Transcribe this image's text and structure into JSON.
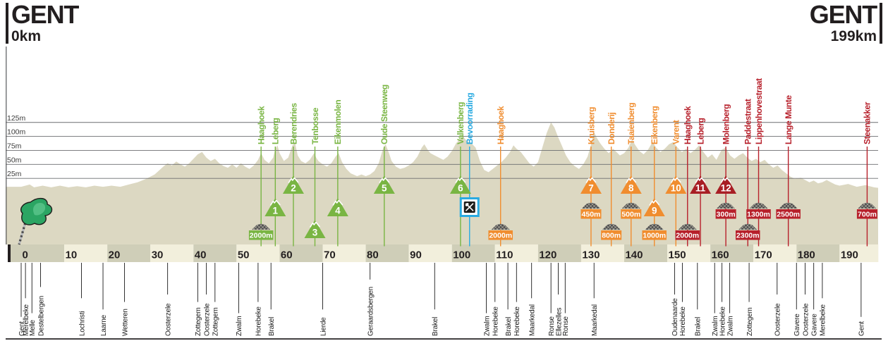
{
  "header": {
    "start_city": "GENT",
    "start_distance": "0km",
    "finish_city": "GENT",
    "finish_distance": "199km"
  },
  "colors": {
    "green": "#79b543",
    "blue": "#29aae1",
    "orange": "#f08d2f",
    "red": "#b7202b",
    "red_triangle": "#a81e24",
    "profile_fill": "#dcd8c2",
    "band_dark": "#cfceb8",
    "band_light": "#f2efdc",
    "grid_line": "#6b6d70",
    "ink": "#231f20",
    "cobble_gray": "#4d4d4f"
  },
  "icons": {
    "start_flag": "green-start-flag",
    "feed_zone": "crossed-knife-and-spoon-sign",
    "cobbled_sector": "cobblestone-mound",
    "climb": "mountain-triangle-with-number"
  },
  "chart_data": {
    "type": "area",
    "x_unit": "km",
    "y_unit": "m",
    "x_range": [
      0,
      199
    ],
    "km_ticks": [
      0,
      10,
      20,
      30,
      40,
      50,
      60,
      70,
      80,
      90,
      100,
      110,
      120,
      130,
      140,
      150,
      160,
      170,
      180,
      190
    ],
    "elevation_ticks_m": [
      25,
      50,
      75,
      100,
      125
    ],
    "elevation_tick_labels": [
      "25m",
      "50m",
      "75m",
      "100m",
      "125m"
    ],
    "profile_km_elevation": [
      [
        0,
        10
      ],
      [
        2,
        14
      ],
      [
        3,
        9
      ],
      [
        5,
        12
      ],
      [
        7,
        9
      ],
      [
        9,
        12
      ],
      [
        11,
        9
      ],
      [
        13,
        11
      ],
      [
        15,
        9
      ],
      [
        17,
        12
      ],
      [
        19,
        10
      ],
      [
        21,
        12
      ],
      [
        23,
        10
      ],
      [
        25,
        14
      ],
      [
        27,
        18
      ],
      [
        29,
        24
      ],
      [
        31,
        32
      ],
      [
        33,
        46
      ],
      [
        34,
        52
      ],
      [
        35,
        48
      ],
      [
        36,
        55
      ],
      [
        37,
        50
      ],
      [
        38,
        46
      ],
      [
        39,
        52
      ],
      [
        40,
        60
      ],
      [
        41,
        68
      ],
      [
        42,
        72
      ],
      [
        43,
        62
      ],
      [
        44,
        56
      ],
      [
        45,
        60
      ],
      [
        46,
        52
      ],
      [
        47,
        47
      ],
      [
        48,
        44
      ],
      [
        49,
        50
      ],
      [
        50,
        44
      ],
      [
        51,
        52
      ],
      [
        52,
        46
      ],
      [
        53,
        42
      ],
      [
        54,
        48
      ],
      [
        55,
        58
      ],
      [
        55.7,
        70
      ],
      [
        56.5,
        58
      ],
      [
        57.5,
        52
      ],
      [
        58.5,
        62
      ],
      [
        59,
        78
      ],
      [
        59.5,
        84
      ],
      [
        60,
        70
      ],
      [
        61,
        56
      ],
      [
        62,
        62
      ],
      [
        63,
        84
      ],
      [
        63.6,
        88
      ],
      [
        64.2,
        66
      ],
      [
        65,
        56
      ],
      [
        66,
        52
      ],
      [
        67,
        58
      ],
      [
        68,
        70
      ],
      [
        68.5,
        62
      ],
      [
        69,
        56
      ],
      [
        70,
        50
      ],
      [
        71,
        46
      ],
      [
        72,
        52
      ],
      [
        73,
        64
      ],
      [
        73.7,
        70
      ],
      [
        74.5,
        54
      ],
      [
        75.5,
        42
      ],
      [
        76.5,
        34
      ],
      [
        78,
        29
      ],
      [
        79,
        32
      ],
      [
        80,
        29
      ],
      [
        81,
        32
      ],
      [
        82,
        38
      ],
      [
        83,
        52
      ],
      [
        84,
        78
      ],
      [
        84.6,
        86
      ],
      [
        85.4,
        70
      ],
      [
        86,
        56
      ],
      [
        87,
        46
      ],
      [
        88,
        42
      ],
      [
        89,
        44
      ],
      [
        90,
        48
      ],
      [
        91,
        54
      ],
      [
        92,
        64
      ],
      [
        93,
        80
      ],
      [
        93.6,
        86
      ],
      [
        94.4,
        76
      ],
      [
        95,
        70
      ],
      [
        96,
        66
      ],
      [
        97,
        62
      ],
      [
        98,
        58
      ],
      [
        99,
        64
      ],
      [
        100,
        74
      ],
      [
        101,
        88
      ],
      [
        102,
        96
      ],
      [
        102.6,
        100
      ],
      [
        103.4,
        92
      ],
      [
        104.5,
        88
      ],
      [
        105.5,
        80
      ],
      [
        106.5,
        56
      ],
      [
        107.5,
        40
      ],
      [
        108.5,
        36
      ],
      [
        109.5,
        42
      ],
      [
        110.5,
        48
      ],
      [
        111.5,
        54
      ],
      [
        112.5,
        62
      ],
      [
        113.5,
        72
      ],
      [
        114.3,
        84
      ],
      [
        115,
        78
      ],
      [
        116,
        72
      ],
      [
        117,
        62
      ],
      [
        118,
        52
      ],
      [
        119,
        46
      ],
      [
        120,
        54
      ],
      [
        121,
        80
      ],
      [
        122,
        106
      ],
      [
        123,
        125
      ],
      [
        123.8,
        116
      ],
      [
        124.6,
        100
      ],
      [
        125.5,
        84
      ],
      [
        126.5,
        66
      ],
      [
        127.5,
        54
      ],
      [
        128.5,
        47
      ],
      [
        129.5,
        42
      ],
      [
        130.5,
        50
      ],
      [
        131.5,
        64
      ],
      [
        132.4,
        88
      ],
      [
        133,
        108
      ],
      [
        133.6,
        98
      ],
      [
        134.4,
        88
      ],
      [
        135.4,
        78
      ],
      [
        136.4,
        70
      ],
      [
        137.4,
        78
      ],
      [
        138.2,
        72
      ],
      [
        139,
        66
      ],
      [
        140,
        70
      ],
      [
        141,
        80
      ],
      [
        141.8,
        94
      ],
      [
        142.6,
        84
      ],
      [
        143.5,
        74
      ],
      [
        144.5,
        68
      ],
      [
        145.5,
        76
      ],
      [
        146.6,
        90
      ],
      [
        147.4,
        80
      ],
      [
        148.4,
        72
      ],
      [
        149.4,
        78
      ],
      [
        150.4,
        86
      ],
      [
        151.4,
        90
      ],
      [
        152.4,
        80
      ],
      [
        153.4,
        72
      ],
      [
        154.4,
        78
      ],
      [
        155.4,
        70
      ],
      [
        156.4,
        76
      ],
      [
        157.4,
        84
      ],
      [
        158.4,
        72
      ],
      [
        159.4,
        62
      ],
      [
        160.4,
        68
      ],
      [
        161.4,
        58
      ],
      [
        162.6,
        76
      ],
      [
        163.6,
        80
      ],
      [
        164.6,
        66
      ],
      [
        165.6,
        60
      ],
      [
        166.6,
        66
      ],
      [
        167.6,
        70
      ],
      [
        168.6,
        62
      ],
      [
        169.6,
        56
      ],
      [
        170.6,
        60
      ],
      [
        171.6,
        54
      ],
      [
        172.6,
        58
      ],
      [
        173.6,
        50
      ],
      [
        174.6,
        44
      ],
      [
        175.6,
        48
      ],
      [
        176.6,
        40
      ],
      [
        177.6,
        34
      ],
      [
        178.6,
        28
      ],
      [
        179.6,
        24
      ],
      [
        181,
        26
      ],
      [
        182,
        22
      ],
      [
        183,
        18
      ],
      [
        184,
        21
      ],
      [
        185,
        16
      ],
      [
        186,
        18
      ],
      [
        187,
        22
      ],
      [
        188,
        18
      ],
      [
        189,
        14
      ],
      [
        190,
        12
      ],
      [
        192,
        15
      ],
      [
        194,
        10
      ],
      [
        196,
        13
      ],
      [
        198,
        9
      ],
      [
        199,
        8
      ]
    ],
    "features": [
      {
        "name": "Haaghoek",
        "km": 55.7,
        "color": "green",
        "type": "cobbles",
        "badge": "2000m",
        "badge_tier": "low"
      },
      {
        "name": "Leberg",
        "km": 59,
        "color": "green",
        "type": "climb",
        "number": 1,
        "tier": "mid"
      },
      {
        "name": "Berendries",
        "km": 63.2,
        "color": "green",
        "type": "climb",
        "number": 2,
        "tier": "high"
      },
      {
        "name": "Tenbosse",
        "km": 68.2,
        "color": "green",
        "type": "climb",
        "number": 3,
        "tier": "low"
      },
      {
        "name": "Eikenmolen",
        "km": 73.5,
        "color": "green",
        "type": "climb",
        "number": 4,
        "tier": "mid"
      },
      {
        "name": "Oude Steenweg",
        "km": 84.3,
        "color": "green",
        "type": "climb",
        "number": 5,
        "tier": "high"
      },
      {
        "name": "Valkenberg",
        "km": 102,
        "color": "green",
        "type": "climb",
        "number": 6,
        "tier": "high"
      },
      {
        "name": "Bevoorrading",
        "km": 104.1,
        "color": "blue",
        "type": "feed"
      },
      {
        "name": "Haaghoek",
        "km": 111.3,
        "color": "orange",
        "type": "cobbles",
        "badge": "2000m",
        "badge_tier": "low"
      },
      {
        "name": "Kruisberg",
        "km": 132.3,
        "color": "orange",
        "type": "climb",
        "number": 7,
        "tier": "high",
        "badge": "450m",
        "badge_tier": "mid"
      },
      {
        "name": "Donderij",
        "km": 137,
        "color": "orange",
        "type": "cobbles",
        "badge": "800m",
        "badge_tier": "low"
      },
      {
        "name": "Taaienberg",
        "km": 141.6,
        "color": "orange",
        "type": "climb",
        "number": 8,
        "tier": "high",
        "badge": "500m",
        "badge_tier": "mid"
      },
      {
        "name": "Eikenberg",
        "km": 147,
        "color": "orange",
        "type": "climb",
        "number": 9,
        "tier": "mid",
        "badge": "1000m",
        "badge_tier": "low"
      },
      {
        "name": "Varent",
        "km": 152,
        "color": "orange",
        "type": "climb",
        "number": 10,
        "tier": "high"
      },
      {
        "name": "Haaghoek",
        "km": 154.7,
        "color": "red",
        "type": "cobbles",
        "badge": "2000m",
        "badge_tier": "low"
      },
      {
        "name": "Leberg",
        "km": 157.7,
        "color": "red",
        "type": "climb",
        "number": 11,
        "tier": "high"
      },
      {
        "name": "Molenberg",
        "km": 163.6,
        "color": "red",
        "type": "climb",
        "number": 12,
        "tier": "high",
        "badge": "300m",
        "badge_tier": "mid"
      },
      {
        "name": "Paddestraat",
        "km": 168.7,
        "color": "red",
        "type": "cobbles",
        "badge": "2300m",
        "badge_tier": "low"
      },
      {
        "name": "Lippenhovestraat",
        "km": 171.2,
        "color": "red",
        "type": "cobbles",
        "badge": "1300m",
        "badge_tier": "mid"
      },
      {
        "name": "Lange Munte",
        "km": 178.1,
        "color": "red",
        "type": "cobbles",
        "badge": "2500m",
        "badge_tier": "mid"
      },
      {
        "name": "Steenakker",
        "km": 196.4,
        "color": "red",
        "type": "cobbles",
        "badge": "700m",
        "badge_tier": "mid"
      }
    ],
    "towns": [
      {
        "name": "Gent",
        "km": 0
      },
      {
        "name": "Merelbeke",
        "km": 1
      },
      {
        "name": "Melle",
        "km": 2.5
      },
      {
        "name": "Destelbergen",
        "km": 4.5
      },
      {
        "name": "Lochristi",
        "km": 14
      },
      {
        "name": "Laarne",
        "km": 19
      },
      {
        "name": "Wetteren",
        "km": 24
      },
      {
        "name": "Oosterzele",
        "km": 34
      },
      {
        "name": "Zottegem",
        "km": 41
      },
      {
        "name": "Oosterzele",
        "km": 43
      },
      {
        "name": "Zottegem",
        "km": 45
      },
      {
        "name": "Zwalm",
        "km": 50.5
      },
      {
        "name": "Horebeke",
        "km": 55
      },
      {
        "name": "Brakel",
        "km": 58
      },
      {
        "name": "Lierde",
        "km": 70
      },
      {
        "name": "Geraardsbergen",
        "km": 81
      },
      {
        "name": "Brakel",
        "km": 96
      },
      {
        "name": "Zwalm",
        "km": 108
      },
      {
        "name": "Horebeke",
        "km": 110
      },
      {
        "name": "Brakel",
        "km": 113
      },
      {
        "name": "Horebeke",
        "km": 115
      },
      {
        "name": "Maarkedal",
        "km": 118.5
      },
      {
        "name": "Ronse",
        "km": 123
      },
      {
        "name": "Ellezelles",
        "km": 124.7
      },
      {
        "name": "Ronse",
        "km": 126.3
      },
      {
        "name": "Maarkedal",
        "km": 133
      },
      {
        "name": "Oudenaarde",
        "km": 151.7
      },
      {
        "name": "Horebeke",
        "km": 153.5
      },
      {
        "name": "Brakel",
        "km": 157
      },
      {
        "name": "Zwalm",
        "km": 161
      },
      {
        "name": "Horebeke",
        "km": 162.7
      },
      {
        "name": "Zwalm",
        "km": 164.5
      },
      {
        "name": "Zottegem",
        "km": 169
      },
      {
        "name": "Oosterzele",
        "km": 175.5
      },
      {
        "name": "Gavere",
        "km": 180
      },
      {
        "name": "Oosterzele",
        "km": 182
      },
      {
        "name": "Gavere",
        "km": 184
      },
      {
        "name": "Merelbeke",
        "km": 186
      },
      {
        "name": "Gent",
        "km": 195
      }
    ]
  }
}
